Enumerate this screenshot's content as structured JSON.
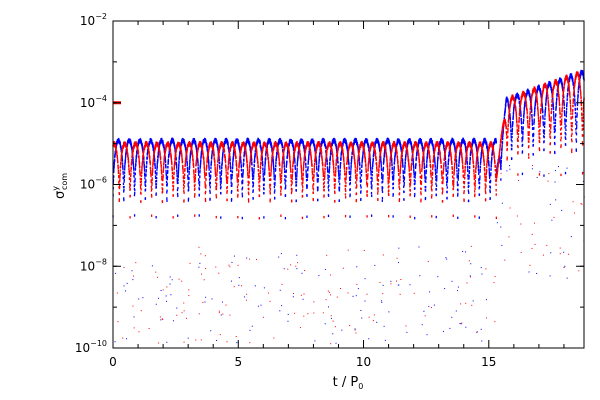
{
  "chart_data": {
    "type": "scatter",
    "title": "",
    "xlabel": "t / P",
    "xlabel_sub": "0",
    "ylabel": "σ",
    "ylabel_sup": "y",
    "ylabel_sub": "com",
    "xlim": [
      0,
      18.8
    ],
    "ylim": [
      1e-10,
      0.01
    ],
    "yscale": "log",
    "grid": false,
    "x_ticks": [
      {
        "value": 0,
        "label": "0"
      },
      {
        "value": 5,
        "label": "5"
      },
      {
        "value": 10,
        "label": "10"
      },
      {
        "value": 15,
        "label": "15"
      }
    ],
    "y_ticks": [
      {
        "value": 1e-10,
        "base": "10",
        "exp": "−10"
      },
      {
        "value": 1e-08,
        "base": "10",
        "exp": "−8"
      },
      {
        "value": 1e-06,
        "base": "10",
        "exp": "−6"
      },
      {
        "value": 0.0001,
        "base": "10",
        "exp": "−4"
      },
      {
        "value": 0.01,
        "base": "10",
        "exp": "−2"
      }
    ],
    "series": [
      {
        "color": "#0000ff",
        "pattern": {
          "low_phase": {
            "t_end": 15.3,
            "peak": 1.2e-05,
            "period": 0.43,
            "min": 1e-07
          },
          "high_phase": {
            "t_start": 15.3,
            "start_value": 0.0001,
            "end_value": 0.0006,
            "period": 0.43,
            "min": 1e-06
          }
        }
      },
      {
        "color": "#ff0000",
        "pattern": {
          "low_phase": {
            "t_end": 15.3,
            "peak": 1e-05,
            "period": 0.43,
            "min": 1e-07
          },
          "high_phase": {
            "t_start": 15.3,
            "start_value": 0.0001,
            "end_value": 0.0006,
            "period": 0.43,
            "min": 1e-06
          }
        }
      }
    ],
    "markers": [
      {
        "x": 0,
        "y": 0.0001,
        "color": "#ff0000"
      }
    ]
  }
}
